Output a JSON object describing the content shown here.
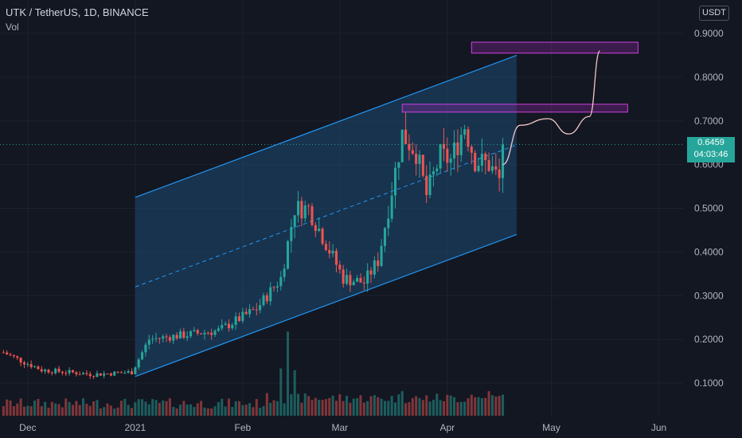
{
  "header": {
    "title": "UTK / TetherUS, 1D, BINANCE",
    "vol_label": "Vol",
    "currency_button": "USDT"
  },
  "price_tag": {
    "price": "0.6459",
    "countdown": "04:03:46"
  },
  "colors": {
    "background": "#131722",
    "grid": "#1e222d",
    "up": "#26a69a",
    "down": "#ef5350",
    "channel_line": "#2196f3",
    "channel_fill": "#1e4a73",
    "box": "#9c27b0",
    "projection": "#f0c8c8"
  },
  "chart_data": {
    "type": "candlestick",
    "title": "UTK / TetherUS, 1D, BINANCE",
    "y_ticks": [
      "0.9000",
      "0.8000",
      "0.7000",
      "0.6000",
      "0.5000",
      "0.4000",
      "0.3000",
      "0.2000",
      "0.1000"
    ],
    "y_tick_values": [
      0.9,
      0.8,
      0.7,
      0.6,
      0.5,
      0.4,
      0.3,
      0.2,
      0.1
    ],
    "ylim": [
      0.02,
      0.96
    ],
    "x_ticks": [
      "Dec",
      "2021",
      "Feb",
      "Mar",
      "Apr",
      "May",
      "Jun"
    ],
    "x_tick_dates": [
      "2020-12-01",
      "2021-01-01",
      "2021-02-01",
      "2021-03-01",
      "2021-04-01",
      "2021-05-01",
      "2021-06-01"
    ],
    "x_range": [
      "2020-11-23",
      "2021-06-08"
    ],
    "current_price": 0.6459,
    "grid": true,
    "candle_keypoints": [
      [
        "2020-11-24",
        0.17
      ],
      [
        "2020-12-05",
        0.13
      ],
      [
        "2020-12-20",
        0.12
      ],
      [
        "2020-12-31",
        0.125
      ],
      [
        "2021-01-05",
        0.2
      ],
      [
        "2021-01-15",
        0.21
      ],
      [
        "2021-01-25",
        0.22
      ],
      [
        "2021-02-05",
        0.27
      ],
      [
        "2021-02-12",
        0.34
      ],
      [
        "2021-02-16",
        0.5
      ],
      [
        "2021-02-20",
        0.5
      ],
      [
        "2021-02-25",
        0.42
      ],
      [
        "2021-03-02",
        0.34
      ],
      [
        "2021-03-08",
        0.33
      ],
      [
        "2021-03-12",
        0.38
      ],
      [
        "2021-03-15",
        0.5
      ],
      [
        "2021-03-19",
        0.67
      ],
      [
        "2021-03-23",
        0.63
      ],
      [
        "2021-03-26",
        0.53
      ],
      [
        "2021-03-30",
        0.62
      ],
      [
        "2021-04-02",
        0.61
      ],
      [
        "2021-04-06",
        0.69
      ],
      [
        "2021-04-09",
        0.61
      ],
      [
        "2021-04-13",
        0.6
      ],
      [
        "2021-04-16",
        0.565
      ],
      [
        "2021-04-17",
        0.6459
      ]
    ],
    "volume_peaks": [
      [
        "2021-02-12",
        0.135
      ],
      [
        "2021-02-14",
        0.24
      ],
      [
        "2021-02-16",
        0.13
      ],
      [
        "2021-03-19",
        0.07
      ],
      [
        "2021-03-24",
        0.05
      ],
      [
        "2021-04-08",
        0.06
      ],
      [
        "2021-04-13",
        0.07
      ],
      [
        "2021-04-17",
        0.06
      ]
    ],
    "channel": {
      "start": "2021-01-01",
      "end": "2021-04-21",
      "upper": [
        0.525,
        0.85
      ],
      "middle": [
        0.32,
        0.645
      ],
      "lower": [
        0.115,
        0.44
      ]
    },
    "boxes": [
      {
        "from": "2021-04-08",
        "to": "2021-05-26",
        "low": 0.855,
        "high": 0.88
      },
      {
        "from": "2021-03-19",
        "to": "2021-05-23",
        "low": 0.72,
        "high": 0.738
      }
    ],
    "projection": [
      [
        "2021-04-17",
        0.6
      ],
      [
        "2021-04-22",
        0.69
      ],
      [
        "2021-04-30",
        0.705
      ],
      [
        "2021-05-06",
        0.67
      ],
      [
        "2021-05-12",
        0.71
      ],
      [
        "2021-05-15",
        0.86
      ]
    ]
  }
}
